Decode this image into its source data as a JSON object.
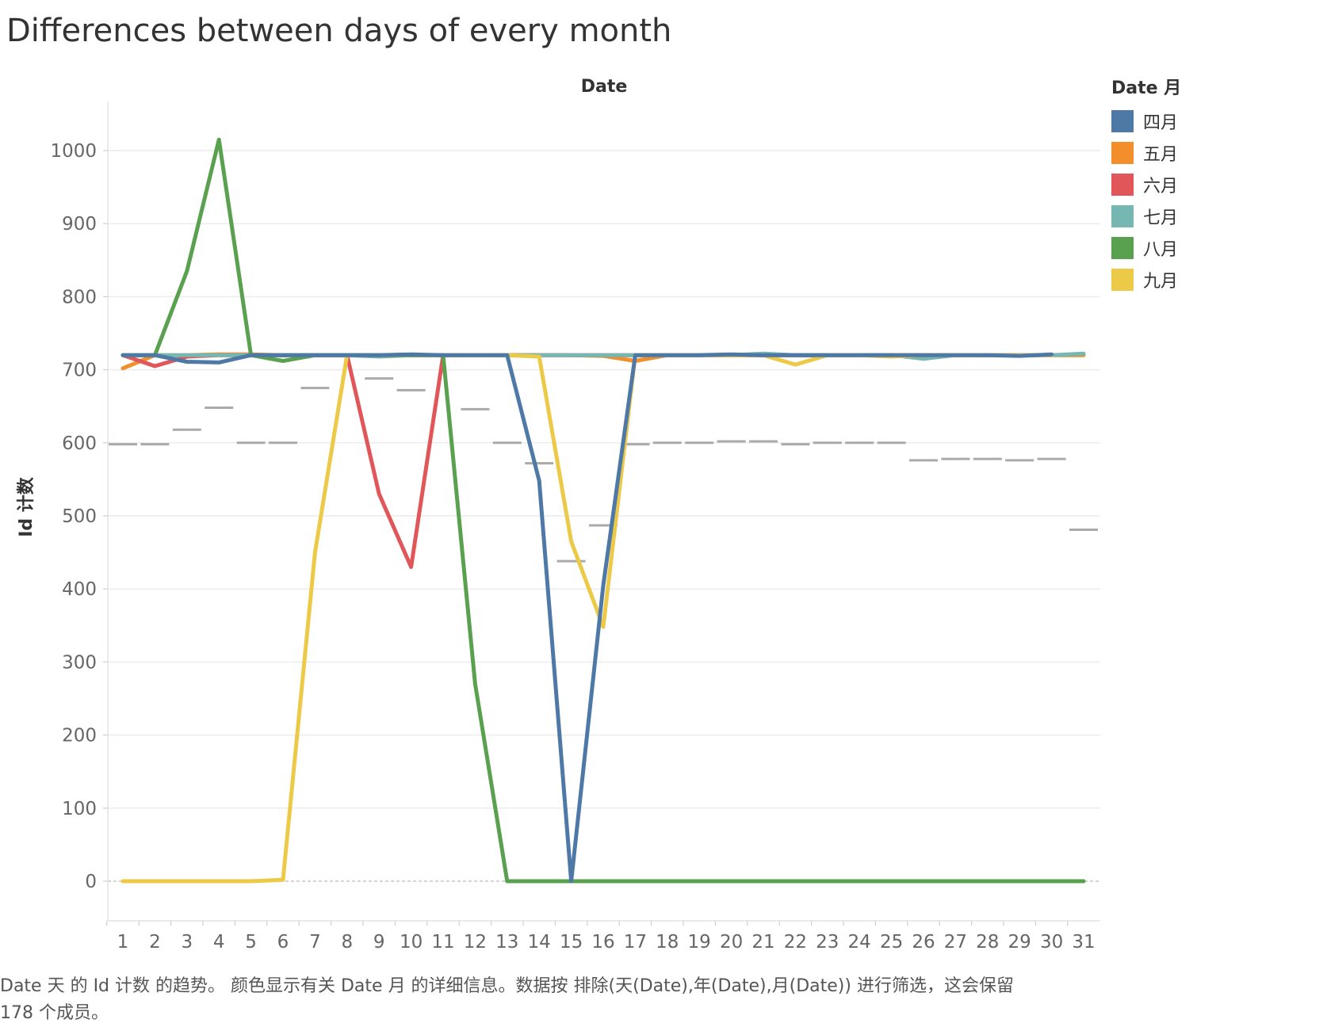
{
  "title": "Differences between days of every month",
  "caption_line1": "Date 天 的 Id 计数 的趋势。 颜色显示有关 Date 月 的详细信息。数据按 排除(天(Date),年(Date),月(Date)) 进行筛选，这会保留",
  "caption_line2": "178 个成员。",
  "legend": {
    "title": "Date 月",
    "items": [
      {
        "label": "四月",
        "color": "#4e79a7"
      },
      {
        "label": "五月",
        "color": "#f28e2b"
      },
      {
        "label": "六月",
        "color": "#e15759"
      },
      {
        "label": "七月",
        "color": "#76b7b2"
      },
      {
        "label": "八月",
        "color": "#59a14f"
      },
      {
        "label": "九月",
        "color": "#edc948"
      }
    ]
  },
  "chart_data": {
    "type": "line",
    "title": "Differences between days of every month",
    "xlabel": "Date",
    "ylabel": "Id 计数",
    "x": [
      1,
      2,
      3,
      4,
      5,
      6,
      7,
      8,
      9,
      10,
      11,
      12,
      13,
      14,
      15,
      16,
      17,
      18,
      19,
      20,
      21,
      22,
      23,
      24,
      25,
      26,
      27,
      28,
      29,
      30,
      31
    ],
    "yticks": [
      0,
      100,
      200,
      300,
      400,
      500,
      600,
      700,
      800,
      900,
      1000
    ],
    "ylim": [
      -55,
      1070
    ],
    "grid": true,
    "legend_position": "right",
    "series": [
      {
        "name": "五月",
        "color": "#f28e2b",
        "values": [
          702,
          720,
          720,
          721,
          721,
          720,
          720,
          720,
          720,
          720,
          720,
          720,
          720,
          720,
          720,
          719,
          712,
          720,
          720,
          720,
          720,
          720,
          720,
          720,
          720,
          720,
          720,
          720,
          720,
          720,
          720
        ]
      },
      {
        "name": "六月",
        "color": "#e15759",
        "values": [
          720,
          705,
          718,
          720,
          720,
          720,
          720,
          720,
          530,
          430,
          720,
          720,
          720,
          720,
          720,
          720,
          720,
          720,
          720,
          720,
          720,
          720,
          720,
          720,
          720,
          720,
          720,
          720,
          720,
          720,
          null
        ]
      },
      {
        "name": "七月",
        "color": "#76b7b2",
        "values": [
          720,
          720,
          720,
          720,
          720,
          720,
          720,
          720,
          718,
          720,
          720,
          720,
          720,
          720,
          720,
          720,
          720,
          720,
          720,
          720,
          722,
          720,
          720,
          720,
          720,
          715,
          720,
          720,
          720,
          720,
          722
        ]
      },
      {
        "name": "九月",
        "color": "#edc948",
        "values": [
          0,
          0,
          0,
          0,
          0,
          2,
          450,
          720,
          720,
          720,
          720,
          720,
          720,
          718,
          465,
          348,
          720,
          720,
          720,
          720,
          720,
          707,
          720,
          720,
          718,
          720,
          720,
          720,
          720,
          720,
          null
        ]
      },
      {
        "name": "八月",
        "color": "#59a14f",
        "values": [
          720,
          720,
          835,
          1015,
          720,
          712,
          720,
          720,
          720,
          720,
          720,
          270,
          0,
          0,
          0,
          0,
          0,
          0,
          0,
          0,
          0,
          0,
          0,
          0,
          0,
          0,
          0,
          0,
          0,
          0,
          0
        ]
      },
      {
        "name": "四月",
        "color": "#4e79a7",
        "values": [
          720,
          720,
          711,
          710,
          720,
          720,
          720,
          720,
          720,
          721,
          720,
          720,
          720,
          548,
          0,
          405,
          720,
          720,
          720,
          721,
          720,
          720,
          720,
          720,
          720,
          720,
          720,
          720,
          719,
          721,
          null
        ]
      }
    ],
    "average_markers": [
      598,
      598,
      618,
      648,
      600,
      600,
      675,
      720,
      688,
      672,
      720,
      646,
      600,
      572,
      438,
      487,
      598,
      600,
      600,
      602,
      602,
      598,
      600,
      600,
      600,
      576,
      578,
      578,
      576,
      578,
      481
    ]
  }
}
